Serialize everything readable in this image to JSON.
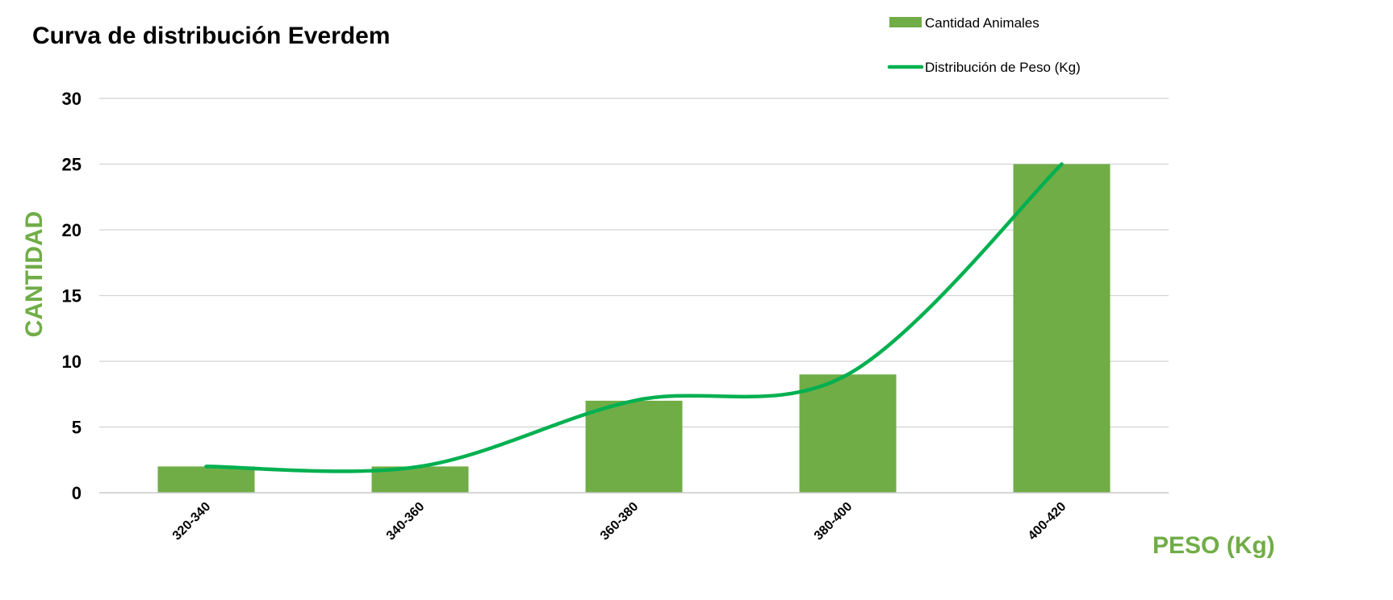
{
  "chart_data": {
    "type": "bar",
    "title": "Curva de distribución Everdem",
    "xlabel": "PESO (Kg)",
    "ylabel": "CANTIDAD",
    "categories": [
      "320-340",
      "340-360",
      "360-380",
      "380-400",
      "400-420"
    ],
    "series": [
      {
        "name": "Cantidad Animales",
        "type": "bar",
        "values": [
          2,
          2,
          7,
          9,
          25
        ]
      },
      {
        "name": "Distribución de Peso (Kg)",
        "type": "line",
        "smooth": true,
        "values": [
          2,
          2,
          7,
          9,
          25
        ]
      }
    ],
    "ylim": [
      0,
      30
    ],
    "yticks": [
      0,
      5,
      10,
      15,
      20,
      25,
      30
    ],
    "grid": true,
    "legend": "top-right"
  },
  "colors": {
    "bar": "#70ad47",
    "line": "#00b050",
    "axis_label": "#70ad47"
  }
}
